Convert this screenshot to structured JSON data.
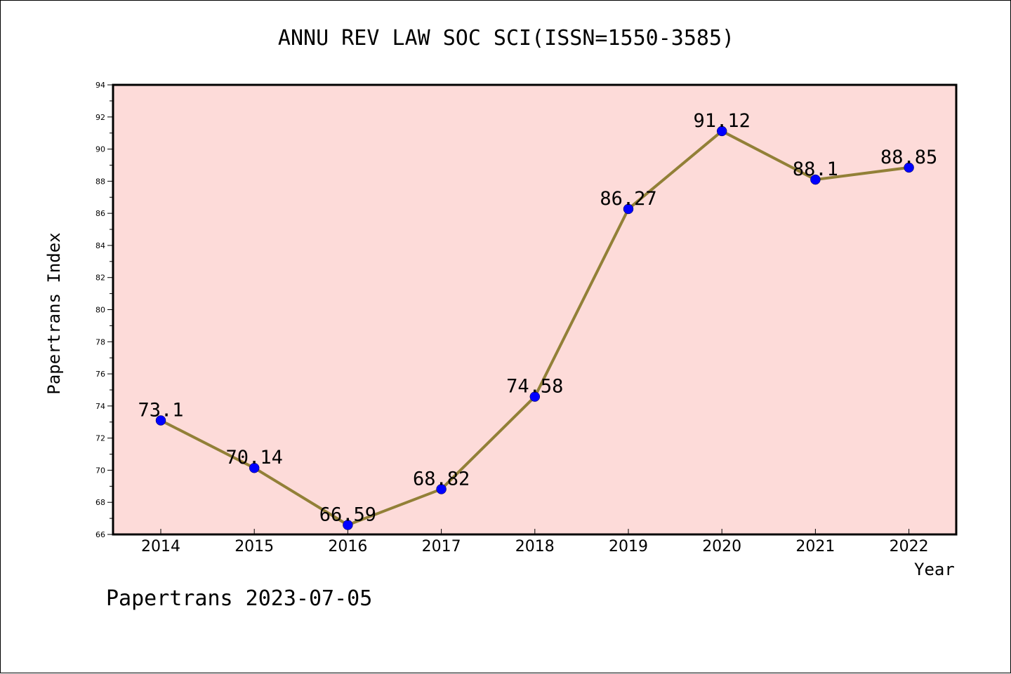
{
  "title": "ANNU REV LAW SOC SCI(ISSN=1550-3585)",
  "footer": "Papertrans 2023-07-05",
  "colors": {
    "plot_background": "#fddbd9",
    "line": "#928037",
    "marker": "#0000ff"
  },
  "chart_data": {
    "type": "line",
    "title": "ANNU REV LAW SOC SCI(ISSN=1550-3585)",
    "xlabel": "Year",
    "ylabel": "Papertrans Index",
    "categories": [
      "2014",
      "2015",
      "2016",
      "2017",
      "2018",
      "2019",
      "2020",
      "2021",
      "2022"
    ],
    "series": [
      {
        "values": [
          73.1,
          70.14,
          66.59,
          68.82,
          74.58,
          86.27,
          91.12,
          88.1,
          88.85
        ],
        "data_labels": [
          "73.1",
          "70.14",
          "66.59",
          "68.82",
          "74.58",
          "86.27",
          "91.12",
          "88.1",
          "88.85"
        ]
      }
    ],
    "ylim": [
      66,
      94
    ],
    "yticks": [
      66,
      68,
      70,
      72,
      74,
      76,
      78,
      80,
      82,
      84,
      86,
      88,
      90,
      92,
      94
    ],
    "grid": false,
    "legend": "none"
  }
}
